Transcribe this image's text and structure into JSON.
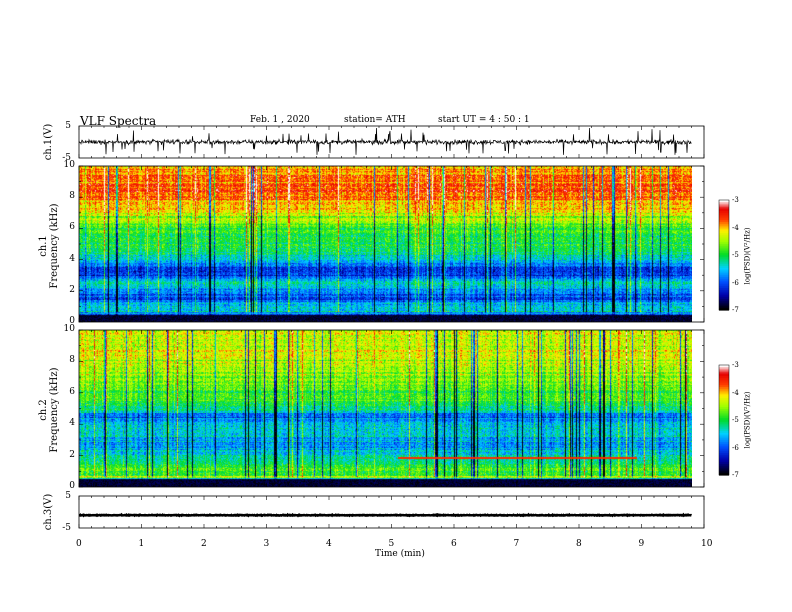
{
  "header": {
    "title": "VLF  Spectra",
    "date": "Feb. 1  , 2020",
    "station": "station= ATH",
    "start": "start  UT  =   4  : 50 : 1"
  },
  "panels": {
    "ch1_wave": {
      "label": "ch.1(V)",
      "y_ticks": [
        "5",
        "-5"
      ]
    },
    "ch1_spec": {
      "label_ch": "ch.1",
      "label_freq": "Frequency  (kHz)",
      "y_ticks": [
        "10",
        "8",
        "6",
        "4",
        "2",
        "0"
      ]
    },
    "ch2_spec": {
      "label_ch": "ch.2",
      "label_freq": "Frequency  (kHz)",
      "y_ticks": [
        "10",
        "8",
        "6",
        "4",
        "2",
        "0"
      ]
    },
    "ch3_wave": {
      "label": "ch.3(V)",
      "y_ticks": [
        "5",
        "-5"
      ]
    }
  },
  "x_axis": {
    "label": "Time  (min)",
    "ticks": [
      "0",
      "1",
      "2",
      "3",
      "4",
      "5",
      "6",
      "7",
      "8",
      "9",
      "10"
    ]
  },
  "colorbar": {
    "label": "log(PSD)(V²/Hz)",
    "ticks": [
      "-3",
      "-4",
      "-5",
      "-6",
      "-7"
    ]
  },
  "colors": {
    "low": "#000000",
    "blue": "#0000cc",
    "cyan": "#00c0ff",
    "green": "#00dd00",
    "yellow": "#ffff00",
    "red": "#ff0000",
    "high": "#ffffff"
  },
  "chart_data": {
    "type": "heatmap",
    "title": "VLF  Spectra",
    "xlabel": "Time  (min)",
    "xlim": [
      0,
      10
    ],
    "data_end_min": 9.8,
    "channels": [
      {
        "name": "ch.1",
        "ylabel": "Frequency  (kHz)",
        "ylim": [
          0,
          10
        ],
        "zlim": [
          -7,
          -3
        ],
        "freq_profile_khz": [
          0,
          0.3,
          0.6,
          1,
          1.5,
          2,
          2.5,
          3,
          3.5,
          4,
          4.5,
          5,
          5.5,
          6,
          6.5,
          7,
          7.5,
          8,
          8.5,
          9,
          9.5,
          10
        ],
        "mean_log_psd": [
          -7,
          -7,
          -5.5,
          -5.3,
          -6.1,
          -5.8,
          -5.2,
          -6.3,
          -6.1,
          -5.4,
          -5.1,
          -5.0,
          -4.9,
          -4.8,
          -4.5,
          -4.3,
          -4.0,
          -3.8,
          -3.7,
          -3.7,
          -3.8,
          -3.9
        ]
      },
      {
        "name": "ch.2",
        "ylabel": "Frequency  (kHz)",
        "ylim": [
          0,
          10
        ],
        "zlim": [
          -7,
          -3
        ],
        "freq_profile_khz": [
          0,
          0.3,
          0.6,
          1,
          1.5,
          2,
          2.5,
          3,
          3.5,
          4,
          4.5,
          5,
          5.5,
          6,
          6.5,
          7,
          7.5,
          8,
          8.5,
          9,
          9.5,
          10
        ],
        "mean_log_psd": [
          -7,
          -6.5,
          -4.6,
          -4.9,
          -5.1,
          -5.2,
          -5.8,
          -5.5,
          -5.4,
          -5.6,
          -5.9,
          -5.1,
          -4.9,
          -4.8,
          -4.7,
          -4.6,
          -4.5,
          -4.4,
          -4.3,
          -4.3,
          -4.3,
          -4.4
        ]
      }
    ],
    "waveforms": [
      {
        "name": "ch.1(V)",
        "ylim": [
          -5,
          5
        ],
        "mean": 0,
        "amplitude_v": 1.2
      },
      {
        "name": "ch.3(V)",
        "ylim": [
          -5,
          5
        ],
        "mean": -1,
        "amplitude_v": 0.2
      }
    ],
    "colorbar": {
      "label": "log(PSD)(V²/Hz)",
      "range": [
        -7,
        -3
      ]
    }
  }
}
